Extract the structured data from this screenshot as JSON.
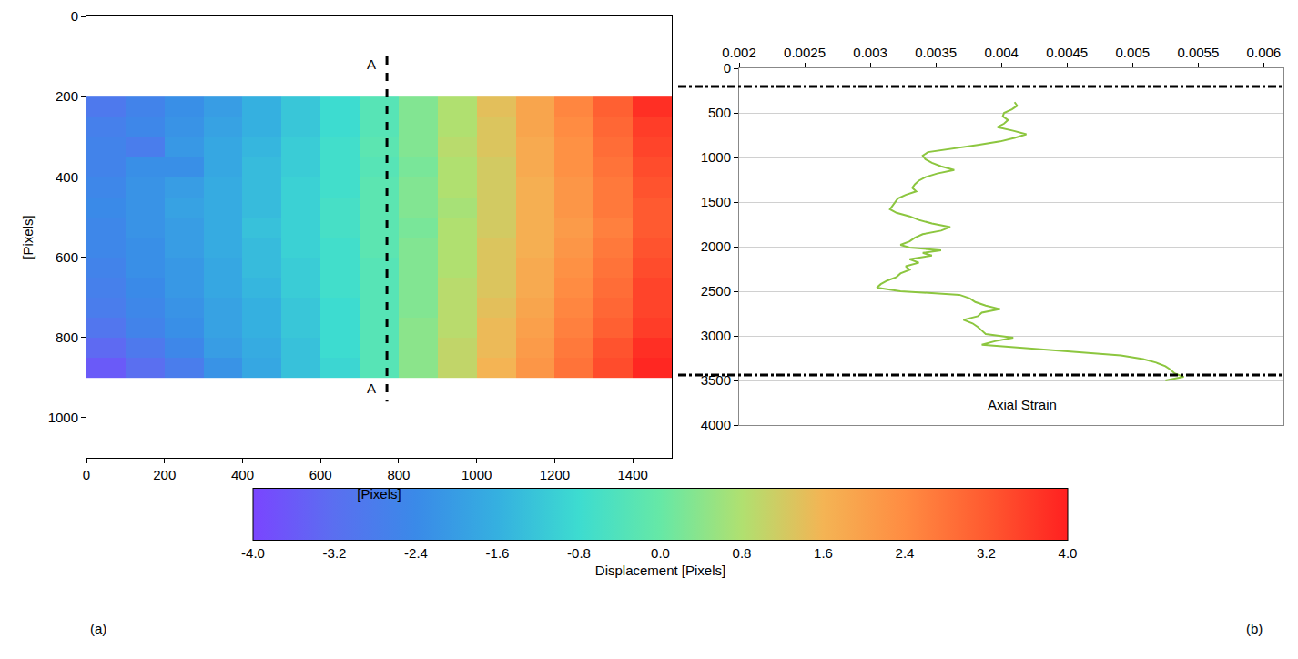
{
  "chart_data": [
    {
      "type": "heatmap",
      "panel": "(a)",
      "xlabel": "[Pixels]",
      "ylabel": "[Pixels]",
      "xlim": [
        0,
        1500
      ],
      "ylim": [
        1100,
        0
      ],
      "xticks": [
        0,
        200,
        400,
        600,
        800,
        1000,
        1200,
        1400
      ],
      "yticks": [
        0,
        200,
        400,
        600,
        800,
        1000
      ],
      "grid": false,
      "x": [
        50,
        150,
        250,
        350,
        450,
        550,
        650,
        750,
        850,
        950,
        1050,
        1150,
        1250,
        1350,
        1450
      ],
      "y": [
        225,
        275,
        325,
        375,
        425,
        475,
        525,
        575,
        625,
        675,
        725,
        775,
        825,
        875
      ],
      "z": [
        [
          -2.9,
          -2.6,
          -2.3,
          -2.0,
          -1.6,
          -1.2,
          -0.8,
          -0.3,
          0.3,
          0.8,
          1.4,
          1.9,
          2.5,
          3.1,
          3.8
        ],
        [
          -2.7,
          -2.5,
          -2.2,
          -1.9,
          -1.6,
          -1.2,
          -0.8,
          -0.3,
          0.3,
          0.8,
          1.3,
          1.9,
          2.4,
          3.0,
          3.6
        ],
        [
          -2.6,
          -2.8,
          -2.1,
          -1.8,
          -1.5,
          -1.1,
          -0.7,
          -0.2,
          0.3,
          0.9,
          1.3,
          1.8,
          2.3,
          2.9,
          3.5
        ],
        [
          -2.6,
          -2.3,
          -2.3,
          -1.8,
          -1.4,
          -1.1,
          -0.7,
          -0.3,
          0.2,
          0.8,
          1.2,
          1.8,
          2.3,
          2.8,
          3.4
        ],
        [
          -2.5,
          -2.2,
          -2.0,
          -1.7,
          -1.4,
          -1.0,
          -0.7,
          -0.2,
          0.3,
          0.8,
          1.2,
          1.7,
          2.2,
          2.7,
          3.3
        ],
        [
          -2.4,
          -2.2,
          -1.9,
          -1.7,
          -1.4,
          -1.0,
          -0.6,
          -0.2,
          0.3,
          0.7,
          1.2,
          1.7,
          2.2,
          2.7,
          3.2
        ],
        [
          -2.5,
          -2.2,
          -2.0,
          -1.7,
          -1.3,
          -1.0,
          -0.6,
          -0.2,
          0.2,
          0.8,
          1.2,
          1.7,
          2.1,
          2.6,
          3.2
        ],
        [
          -2.5,
          -2.3,
          -2.0,
          -1.7,
          -1.4,
          -1.0,
          -0.7,
          -0.2,
          0.3,
          0.8,
          1.3,
          1.7,
          2.2,
          2.7,
          3.3
        ],
        [
          -2.6,
          -2.3,
          -2.1,
          -1.8,
          -1.4,
          -1.1,
          -0.7,
          -0.3,
          0.3,
          0.8,
          1.3,
          1.8,
          2.3,
          2.8,
          3.4
        ],
        [
          -2.7,
          -2.4,
          -2.1,
          -1.8,
          -1.5,
          -1.1,
          -0.7,
          -0.3,
          0.3,
          0.9,
          1.3,
          1.8,
          2.4,
          2.9,
          3.5
        ],
        [
          -2.8,
          -2.5,
          -2.2,
          -1.9,
          -1.6,
          -1.2,
          -0.8,
          -0.3,
          0.3,
          0.9,
          1.4,
          1.9,
          2.5,
          3.0,
          3.5
        ],
        [
          -3.0,
          -2.6,
          -2.3,
          -1.9,
          -1.6,
          -1.2,
          -0.8,
          -0.3,
          0.4,
          0.9,
          1.5,
          2.0,
          2.6,
          3.1,
          3.6
        ],
        [
          -3.3,
          -2.9,
          -2.5,
          -2.0,
          -1.7,
          -1.3,
          -0.8,
          -0.3,
          0.4,
          1.0,
          1.5,
          2.1,
          2.7,
          3.3,
          3.8
        ],
        [
          -3.6,
          -3.2,
          -2.8,
          -2.2,
          -1.8,
          -1.3,
          -0.9,
          -0.3,
          0.4,
          1.0,
          1.6,
          2.2,
          2.8,
          3.4,
          3.9
        ]
      ],
      "colorbar": {
        "title": "Displacement [Pixels]",
        "range": [
          -4.0,
          4.0
        ],
        "ticks": [
          {
            "value": -4.0,
            "label": "-4.0"
          },
          {
            "value": -3.2,
            "label": "-3.2"
          },
          {
            "value": -2.4,
            "label": "-2.4"
          },
          {
            "value": -1.6,
            "label": "-1.6"
          },
          {
            "value": -0.8,
            "label": "-0.8"
          },
          {
            "value": 0.0,
            "label": "0.0"
          },
          {
            "value": 0.8,
            "label": "0.8"
          },
          {
            "value": 1.6,
            "label": "1.6"
          },
          {
            "value": 2.4,
            "label": "2.4"
          },
          {
            "value": 3.2,
            "label": "3.2"
          },
          {
            "value": 4.0,
            "label": "4.0"
          }
        ]
      },
      "section": {
        "x": 770,
        "y": [
          100,
          960
        ],
        "labels": [
          "A",
          "A"
        ]
      }
    },
    {
      "type": "line",
      "panel": "(b)",
      "color": "#8cc63f",
      "xlim": [
        0.002,
        0.00615
      ],
      "ylim": [
        4000,
        0
      ],
      "xticks": [
        0.002,
        0.0025,
        0.003,
        0.0035,
        0.004,
        0.0045,
        0.005,
        0.0055,
        0.006
      ],
      "yticks": [
        0,
        500,
        1000,
        1500,
        2000,
        2500,
        3000,
        3500,
        4000
      ],
      "grid": true,
      "hlines": [
        204,
        3440
      ],
      "annotations": [
        {
          "text": "Axial Strain",
          "x": 0.00416,
          "y": 3775
        }
      ],
      "x": [
        0.0041,
        0.00412,
        0.00408,
        0.00402,
        0.00401,
        0.00405,
        0.00402,
        0.00397,
        0.00409,
        0.00419,
        0.0041,
        0.00399,
        0.00382,
        0.00361,
        0.00344,
        0.0034,
        0.00342,
        0.00347,
        0.00354,
        0.00364,
        0.00351,
        0.00342,
        0.00337,
        0.00334,
        0.00332,
        0.00335,
        0.00327,
        0.00321,
        0.00319,
        0.00317,
        0.00315,
        0.0032,
        0.0033,
        0.00337,
        0.00347,
        0.00361,
        0.00354,
        0.0034,
        0.00334,
        0.0033,
        0.00323,
        0.0033,
        0.00354,
        0.0034,
        0.00347,
        0.0033,
        0.00337,
        0.00327,
        0.0033,
        0.00323,
        0.0032,
        0.00313,
        0.00308,
        0.00305,
        0.00323,
        0.00368,
        0.00376,
        0.0038,
        0.00388,
        0.00399,
        0.00385,
        0.00382,
        0.00371,
        0.00378,
        0.00382,
        0.00385,
        0.00388,
        0.00409,
        0.00395,
        0.00385,
        0.00423,
        0.00457,
        0.00491,
        0.00508,
        0.00518,
        0.00525,
        0.00529,
        0.00532,
        0.00539,
        0.00525
      ],
      "y": [
        380,
        420,
        460,
        500,
        540,
        580,
        620,
        660,
        700,
        740,
        780,
        820,
        860,
        900,
        940,
        980,
        1020,
        1060,
        1100,
        1140,
        1180,
        1220,
        1260,
        1300,
        1340,
        1380,
        1420,
        1460,
        1500,
        1540,
        1580,
        1620,
        1660,
        1700,
        1740,
        1780,
        1820,
        1860,
        1900,
        1940,
        1980,
        2010,
        2040,
        2070,
        2100,
        2140,
        2180,
        2220,
        2260,
        2300,
        2340,
        2380,
        2420,
        2460,
        2500,
        2540,
        2580,
        2620,
        2660,
        2700,
        2740,
        2780,
        2820,
        2860,
        2900,
        2940,
        2980,
        3020,
        3060,
        3100,
        3140,
        3180,
        3220,
        3260,
        3300,
        3340,
        3380,
        3420,
        3460,
        3500
      ]
    }
  ]
}
